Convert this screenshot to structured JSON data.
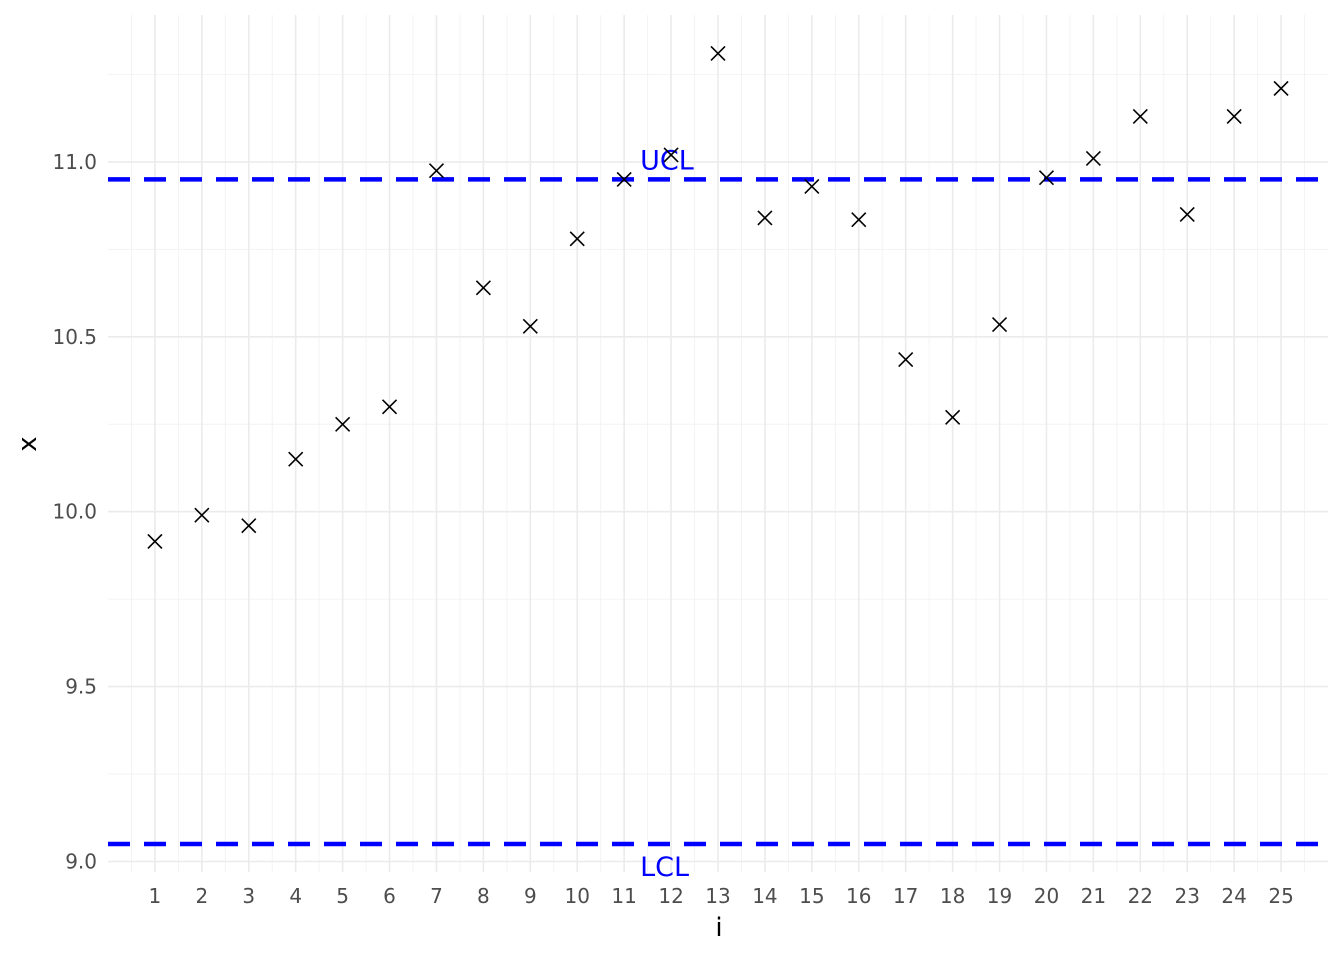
{
  "chart_data": {
    "type": "scatter",
    "xlabel": "i",
    "ylabel": "x",
    "xlim": [
      0.0,
      26.0
    ],
    "ylim": [
      8.97,
      11.42
    ],
    "x_ticks": [
      1,
      2,
      3,
      4,
      5,
      6,
      7,
      8,
      9,
      10,
      11,
      12,
      13,
      14,
      15,
      16,
      17,
      18,
      19,
      20,
      21,
      22,
      23,
      24,
      25
    ],
    "y_ticks": [
      9.0,
      9.5,
      10.0,
      10.5,
      11.0
    ],
    "y_tick_labels": [
      "9.0",
      "9.5",
      "10.0",
      "10.5",
      "11.0"
    ],
    "grid": true,
    "marker": "x",
    "point_color": "#000000",
    "x": [
      1,
      2,
      3,
      4,
      5,
      6,
      7,
      8,
      9,
      10,
      11,
      12,
      13,
      14,
      15,
      16,
      17,
      18,
      19,
      20,
      21,
      22,
      23,
      24,
      25
    ],
    "y": [
      9.915,
      9.99,
      9.96,
      10.15,
      10.25,
      10.3,
      10.975,
      10.64,
      10.53,
      10.78,
      10.95,
      11.02,
      11.31,
      10.84,
      10.93,
      10.835,
      10.435,
      10.27,
      10.535,
      10.955,
      11.01,
      11.13,
      10.85,
      11.13,
      11.21
    ],
    "reference_lines": [
      {
        "label": "UCL",
        "value": 10.95,
        "style": "dashed",
        "color": "#0000ff",
        "label_x": 12.3
      },
      {
        "label": "LCL",
        "value": 9.05,
        "style": "dashed",
        "color": "#0000ff",
        "label_x": 12.3
      }
    ]
  }
}
